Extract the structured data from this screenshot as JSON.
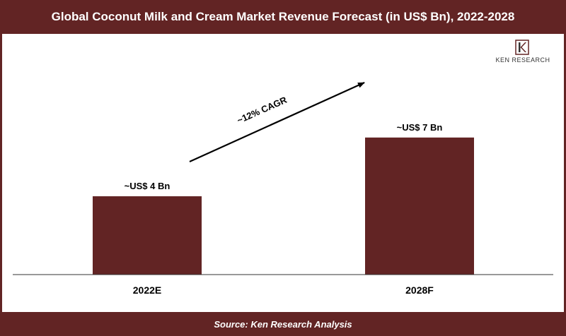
{
  "header": {
    "title": "Global Coconut Milk and Cream Market Revenue Forecast (in US$ Bn), 2022-2028"
  },
  "footer": {
    "source": "Source: Ken Research Analysis"
  },
  "logo": {
    "text": "KEN RESEARCH",
    "icon": "ken-research-logo-icon"
  },
  "colors": {
    "bar": "#622424",
    "header": "#622424",
    "text": "#000000"
  },
  "annotation": {
    "cagr_label": "~12% CAGR"
  },
  "chart_data": {
    "type": "bar",
    "title": "Global Coconut Milk and Cream Market Revenue Forecast (in US$ Bn), 2022-2028",
    "categories": [
      "2022E",
      "2028F"
    ],
    "values": [
      4,
      7
    ],
    "data_labels": [
      "~US$ 4 Bn",
      "~US$ 7 Bn"
    ],
    "ylim": [
      0,
      11.5
    ],
    "grid": false,
    "legend": "none",
    "xlabel": "",
    "ylabel": ""
  }
}
